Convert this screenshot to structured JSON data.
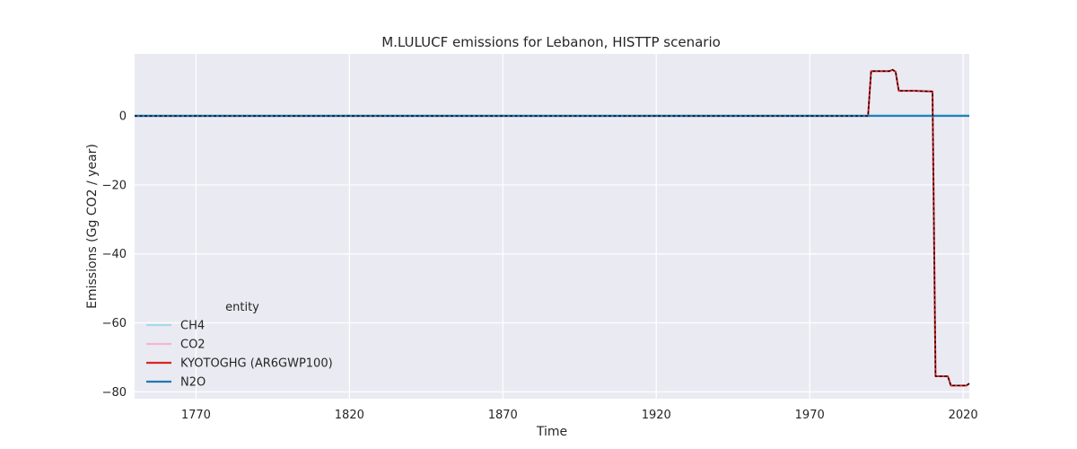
{
  "chart_data": {
    "type": "line",
    "title": "M.LULUCF emissions for Lebanon, HISTTP scenario",
    "xlabel": "Time",
    "ylabel": "Emissions (Gg CO2 / year)",
    "xlim": [
      1750,
      2022
    ],
    "ylim": [
      -82,
      18
    ],
    "x_ticks": [
      1770,
      1820,
      1870,
      1920,
      1970,
      2020
    ],
    "y_ticks": [
      0,
      -20,
      -40,
      -60,
      -80
    ],
    "grid": true,
    "background": "#eaeaf2",
    "legend": {
      "title": "entity",
      "placement": "lower-left",
      "entries": [
        "CH4",
        "CO2",
        "KYOTOGHG (AR6GWP100)",
        "N2O"
      ]
    },
    "series": [
      {
        "name": "CH4",
        "color": "#a6dce8",
        "style": "solid",
        "x": [
          1750,
          2022
        ],
        "y": [
          0.3,
          0.3
        ]
      },
      {
        "name": "CO2",
        "color": "#f4b6d2",
        "style": "solid",
        "x": [
          1750,
          1989,
          1990,
          1996,
          1997,
          1998,
          1999,
          2003,
          2004,
          2010,
          2011,
          2015,
          2016,
          2021,
          2022
        ],
        "y": [
          0,
          0,
          13,
          13,
          13.4,
          12.8,
          7.3,
          7.3,
          7.3,
          7.1,
          -75.5,
          -75.5,
          -78.2,
          -78.2,
          -77.6
        ]
      },
      {
        "name": "KYOTOGHG (AR6GWP100)",
        "color": "#d62728",
        "style": "solid",
        "x": [
          1750,
          1989,
          1990,
          1996,
          1997,
          1998,
          1999,
          2003,
          2004,
          2010,
          2011,
          2015,
          2016,
          2021,
          2022
        ],
        "y": [
          0,
          0,
          13,
          13,
          13.4,
          12.8,
          7.3,
          7.3,
          7.3,
          7.1,
          -75.5,
          -75.5,
          -78.2,
          -78.2,
          -77.6
        ]
      },
      {
        "name": "N2O",
        "color": "#1f77b4",
        "style": "solid",
        "x": [
          1750,
          2022
        ],
        "y": [
          0,
          0
        ]
      },
      {
        "name": "",
        "color": "#000000",
        "style": "dashed",
        "x": [
          1750,
          1989,
          1990,
          1996,
          1997,
          1998,
          1999,
          2003,
          2004,
          2010,
          2011,
          2015,
          2016,
          2021,
          2022
        ],
        "y": [
          0,
          0,
          13,
          13,
          13.4,
          12.8,
          7.3,
          7.3,
          7.3,
          7.1,
          -75.5,
          -75.5,
          -78.2,
          -78.2,
          -77.6
        ]
      }
    ]
  }
}
